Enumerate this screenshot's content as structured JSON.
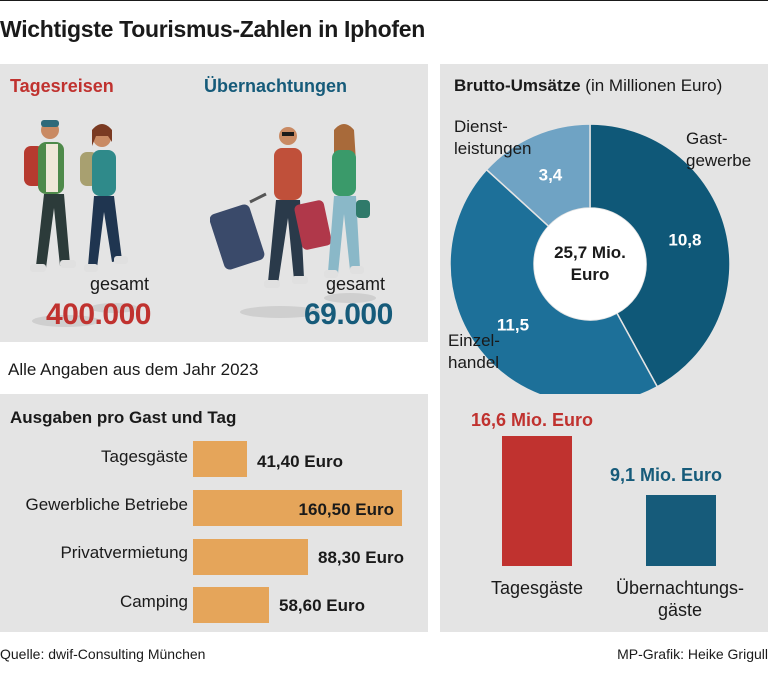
{
  "title": "Wichtigste Tourismus-Zahlen in Iphofen",
  "visitors": {
    "day_trips": {
      "label": "Tagesreisen",
      "total_label": "gesamt",
      "value": "400.000"
    },
    "overnight": {
      "label": "Übernachtungen",
      "total_label": "gesamt",
      "value": "69.000"
    }
  },
  "note": "Alle Angaben aus dem Jahr 2023",
  "spending": {
    "title": "Ausgaben pro Gast und Tag",
    "items": [
      {
        "label": "Tagesgäste",
        "value_text": "41,40 Euro"
      },
      {
        "label": "Gewerbliche Betriebe",
        "value_text": "160,50 Euro"
      },
      {
        "label": "Privatvermietung",
        "value_text": "88,30 Euro"
      },
      {
        "label": "Camping",
        "value_text": "58,60 Euro"
      }
    ]
  },
  "revenue": {
    "title_bold": "Brutto-Umsätze",
    "title_rest": " (in Millionen Euro)",
    "center_line1": "25,7 Mio.",
    "center_line2": "Euro",
    "slice_labels": {
      "dienst_line1": "Dienst-",
      "dienst_line2": "leistungen",
      "gast_line1": "Gast-",
      "gast_line2": "gewerbe",
      "einzel_line1": "Einzel-",
      "einzel_line2": "handel"
    },
    "bars": [
      {
        "value_text": "16,6 Mio. Euro",
        "label_line1": "Tagesgäste",
        "label_line2": ""
      },
      {
        "value_text": "9,1 Mio. Euro",
        "label_line1": "Übernachtungs-",
        "label_line2": "gäste"
      }
    ]
  },
  "footer": {
    "source": "Quelle: dwif-Consulting München",
    "credit": "MP-Grafik: Heike Grigull"
  },
  "colors": {
    "red": "#c0322f",
    "blue": "#165b7a",
    "donut_dark": "#0f5878",
    "donut_mid": "#1d7099",
    "donut_light": "#6fa3c4",
    "orange": "#e5a55a"
  },
  "chart_data": [
    {
      "type": "bar",
      "title": "Ausgaben pro Gast und Tag",
      "orientation": "horizontal",
      "categories": [
        "Tagesgäste",
        "Gewerbliche Betriebe",
        "Privatvermietung",
        "Camping"
      ],
      "values": [
        41.4,
        160.5,
        88.3,
        58.6
      ],
      "unit": "Euro"
    },
    {
      "type": "pie",
      "title": "Brutto-Umsätze (in Millionen Euro)",
      "donut": true,
      "total": 25.7,
      "categories": [
        "Gastgewerbe",
        "Einzelhandel",
        "Dienstleistungen"
      ],
      "values": [
        10.8,
        11.5,
        3.4
      ],
      "value_labels": [
        "10,8",
        "11,5",
        "3,4"
      ]
    },
    {
      "type": "bar",
      "categories": [
        "Tagesgäste",
        "Übernachtungsgäste"
      ],
      "values": [
        16.6,
        9.1
      ],
      "unit": "Mio. Euro"
    }
  ]
}
